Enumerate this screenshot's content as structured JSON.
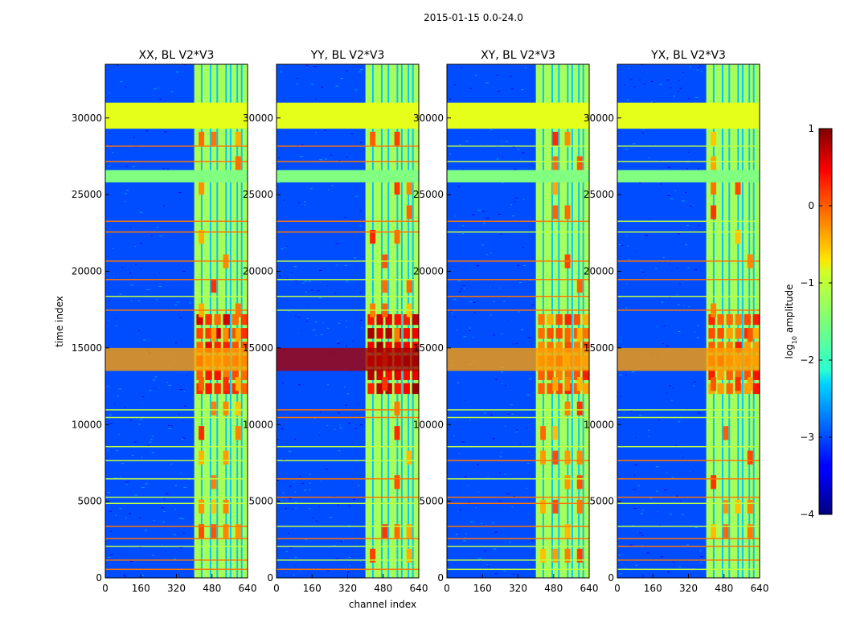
{
  "chart_data": {
    "type": "heatmap",
    "suptitle": "2015-01-15 0.0-24.0",
    "xlabel": "channel index",
    "ylabel": "time index",
    "xlim": [
      0,
      640
    ],
    "ylim": [
      0,
      33500
    ],
    "xticks": [
      0,
      160,
      320,
      480,
      640
    ],
    "yticks": [
      0,
      5000,
      10000,
      15000,
      20000,
      25000,
      30000
    ],
    "panels": [
      {
        "title": "XX, BL V2*V3",
        "polarization": "XX"
      },
      {
        "title": "YY, BL V2*V3",
        "polarization": "YY"
      },
      {
        "title": "XY, BL V2*V3",
        "polarization": "XY"
      },
      {
        "title": "YX, BL V2*V3",
        "polarization": "YX"
      }
    ],
    "colorbar": {
      "label": "log10 amplitude",
      "label_base": "log",
      "label_sub": "10",
      "label_rest": " amplitude",
      "range": [
        -4,
        1
      ],
      "ticks": [
        "1",
        "0",
        "−1",
        "−2",
        "−3",
        "−4"
      ],
      "colormap": "jet"
    },
    "features": {
      "bright_channel_band": [
        400,
        640
      ],
      "flagged_time_block": [
        29300,
        31000
      ],
      "flagged_time_block_2": [
        25800,
        26600
      ],
      "strong_rfi_time": [
        13500,
        15000
      ],
      "background_log_amplitude": -3,
      "band_log_amplitude": -1.3,
      "flagged_log_amplitude": -1
    }
  }
}
